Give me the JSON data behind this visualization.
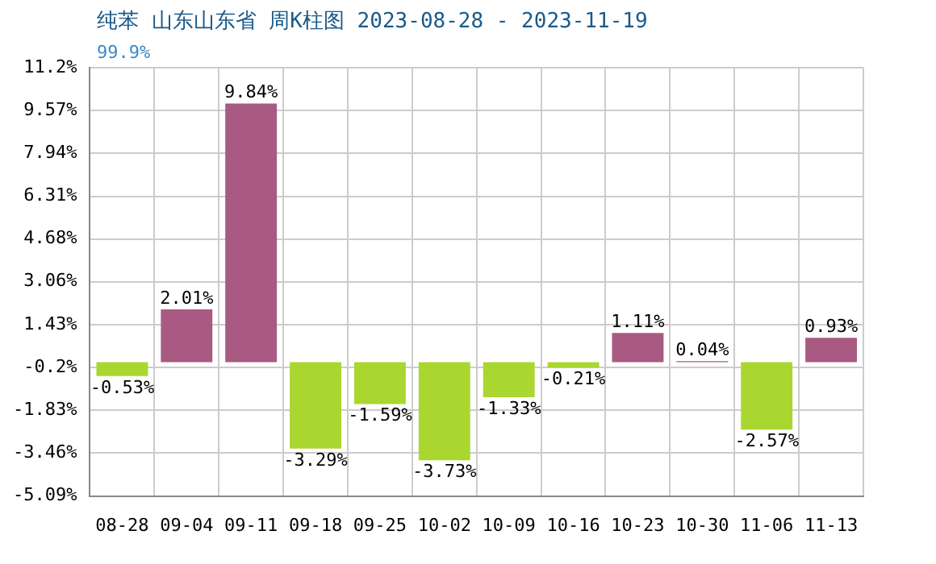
{
  "chart_data": {
    "type": "bar",
    "title": "纯苯 山东山东省 周K柱图 2023-08-28 - 2023-11-19",
    "subtitle": "99.9%",
    "categories": [
      "08-28",
      "09-04",
      "09-11",
      "09-18",
      "09-25",
      "10-02",
      "10-09",
      "10-16",
      "10-23",
      "10-30",
      "11-06",
      "11-13"
    ],
    "values": [
      -0.53,
      2.01,
      9.84,
      -3.29,
      -1.59,
      -3.73,
      -1.33,
      -0.21,
      1.11,
      0.04,
      -2.57,
      0.93
    ],
    "colors": [
      "#aad630",
      "#a85a82",
      "#a85a82",
      "#aad630",
      "#aad630",
      "#aad630",
      "#aad630",
      "#aad630",
      "#a85a82",
      "#a85a82",
      "#aad630",
      "#a85a82"
    ],
    "value_labels": [
      "-0.53%",
      "2.01%",
      "9.84%",
      "-3.29%",
      "-1.59%",
      "-3.73%",
      "-1.33%",
      "-0.21%",
      "1.11%",
      "0.04%",
      "-2.57%",
      "0.93%"
    ],
    "ylim": [
      -5.09,
      11.2
    ],
    "yticks": [
      {
        "value": -5.09,
        "label": "-5.09%"
      },
      {
        "value": -3.46,
        "label": "-3.46%"
      },
      {
        "value": -1.83,
        "label": "-1.83%"
      },
      {
        "value": -0.2,
        "label": "-0.2%"
      },
      {
        "value": 1.43,
        "label": "1.43%"
      },
      {
        "value": 3.06,
        "label": "3.06%"
      },
      {
        "value": 4.68,
        "label": "4.68%"
      },
      {
        "value": 6.31,
        "label": "6.31%"
      },
      {
        "value": 7.94,
        "label": "7.94%"
      },
      {
        "value": 9.57,
        "label": "9.57%"
      },
      {
        "value": 11.2,
        "label": "11.2%"
      }
    ],
    "grid": true,
    "legend": false
  }
}
